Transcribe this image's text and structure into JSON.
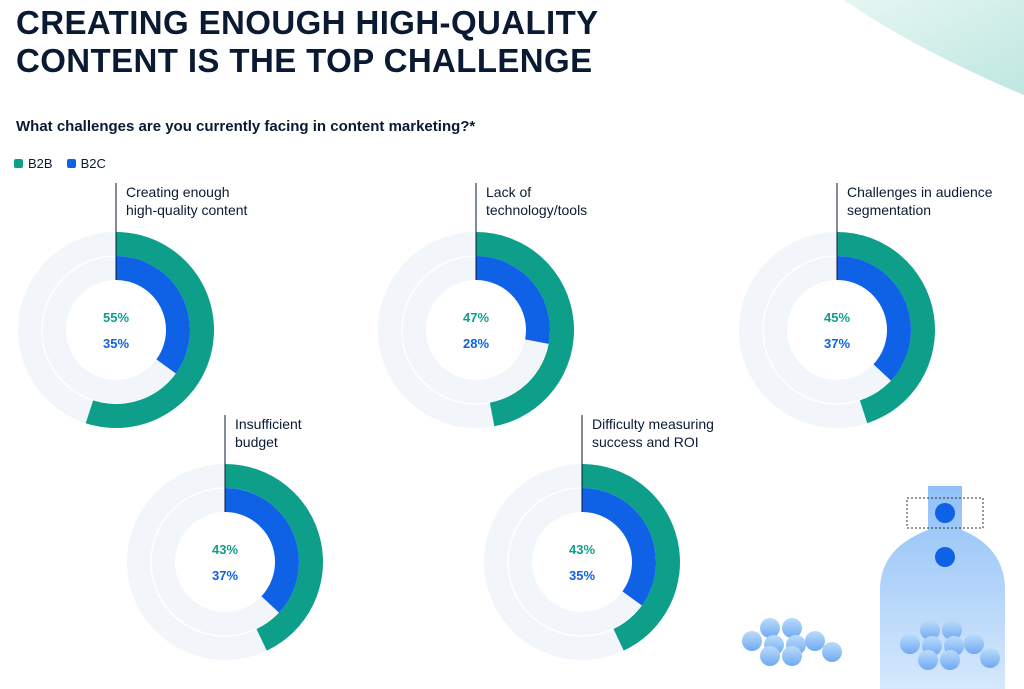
{
  "title_lines": [
    "CREATING ENOUGH HIGH-QUALITY",
    "CONTENT IS THE TOP CHALLENGE"
  ],
  "subtitle": "What challenges are you currently facing in content marketing?*",
  "legend": [
    {
      "label": "B2B",
      "color": "#0e9f8a"
    },
    {
      "label": "B2C",
      "color": "#0f62e6"
    }
  ],
  "colors": {
    "b2b": "#0e9f8a",
    "b2c": "#0f62e6",
    "track": "#f2f5fa",
    "ink": "#0b1a33"
  },
  "chart_data": {
    "type": "donut",
    "series_names": [
      "B2B",
      "B2C"
    ],
    "charts": [
      {
        "label_lines": [
          "Creating enough",
          "high-quality content"
        ],
        "b2b": 55,
        "b2c": 35,
        "b2b_label": "55%",
        "b2c_label": "35%"
      },
      {
        "label_lines": [
          "Lack of",
          "technology/tools"
        ],
        "b2b": 47,
        "b2c": 28,
        "b2b_label": "47%",
        "b2c_label": "28%"
      },
      {
        "label_lines": [
          "Challenges in audience",
          "segmentation"
        ],
        "b2b": 45,
        "b2c": 37,
        "b2b_label": "45%",
        "b2c_label": "37%"
      },
      {
        "label_lines": [
          "Insufficient",
          "budget"
        ],
        "b2b": 43,
        "b2c": 37,
        "b2b_label": "43%",
        "b2c_label": "37%"
      },
      {
        "label_lines": [
          "Difficulty measuring",
          "success and ROI"
        ],
        "b2b": 43,
        "b2c": 35,
        "b2b_label": "43%",
        "b2c_label": "35%"
      }
    ]
  }
}
